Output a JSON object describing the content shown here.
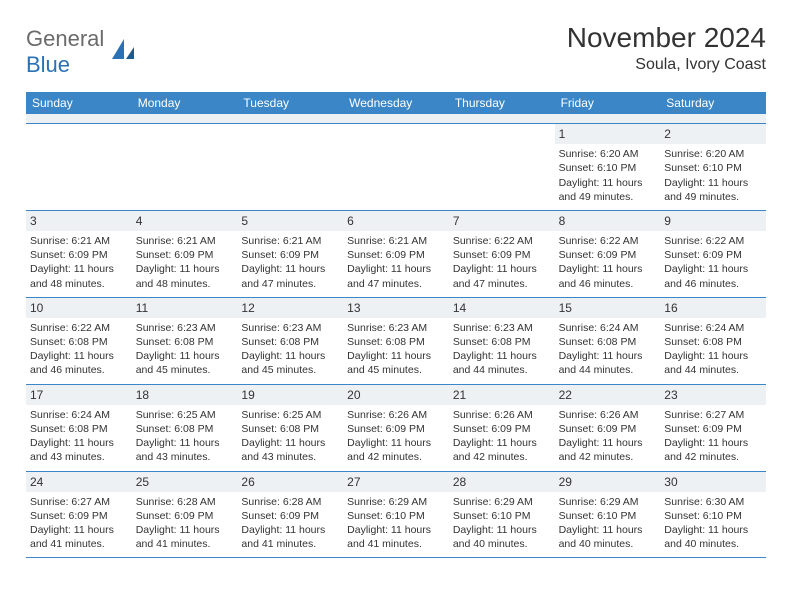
{
  "logo": {
    "general": "General",
    "blue": "Blue"
  },
  "title": "November 2024",
  "location": "Soula, Ivory Coast",
  "weekday_header_bg": "#3b86c6",
  "weekday_header_fg": "#ffffff",
  "daynum_bg": "#eef1f3",
  "row_border": "#3b86c6",
  "weekdays": [
    "Sunday",
    "Monday",
    "Tuesday",
    "Wednesday",
    "Thursday",
    "Friday",
    "Saturday"
  ],
  "weeks": [
    [
      {
        "empty": true
      },
      {
        "empty": true
      },
      {
        "empty": true
      },
      {
        "empty": true
      },
      {
        "empty": true
      },
      {
        "day": "1",
        "sunrise": "Sunrise: 6:20 AM",
        "sunset": "Sunset: 6:10 PM",
        "daylight": "Daylight: 11 hours and 49 minutes."
      },
      {
        "day": "2",
        "sunrise": "Sunrise: 6:20 AM",
        "sunset": "Sunset: 6:10 PM",
        "daylight": "Daylight: 11 hours and 49 minutes."
      }
    ],
    [
      {
        "day": "3",
        "sunrise": "Sunrise: 6:21 AM",
        "sunset": "Sunset: 6:09 PM",
        "daylight": "Daylight: 11 hours and 48 minutes."
      },
      {
        "day": "4",
        "sunrise": "Sunrise: 6:21 AM",
        "sunset": "Sunset: 6:09 PM",
        "daylight": "Daylight: 11 hours and 48 minutes."
      },
      {
        "day": "5",
        "sunrise": "Sunrise: 6:21 AM",
        "sunset": "Sunset: 6:09 PM",
        "daylight": "Daylight: 11 hours and 47 minutes."
      },
      {
        "day": "6",
        "sunrise": "Sunrise: 6:21 AM",
        "sunset": "Sunset: 6:09 PM",
        "daylight": "Daylight: 11 hours and 47 minutes."
      },
      {
        "day": "7",
        "sunrise": "Sunrise: 6:22 AM",
        "sunset": "Sunset: 6:09 PM",
        "daylight": "Daylight: 11 hours and 47 minutes."
      },
      {
        "day": "8",
        "sunrise": "Sunrise: 6:22 AM",
        "sunset": "Sunset: 6:09 PM",
        "daylight": "Daylight: 11 hours and 46 minutes."
      },
      {
        "day": "9",
        "sunrise": "Sunrise: 6:22 AM",
        "sunset": "Sunset: 6:09 PM",
        "daylight": "Daylight: 11 hours and 46 minutes."
      }
    ],
    [
      {
        "day": "10",
        "sunrise": "Sunrise: 6:22 AM",
        "sunset": "Sunset: 6:08 PM",
        "daylight": "Daylight: 11 hours and 46 minutes."
      },
      {
        "day": "11",
        "sunrise": "Sunrise: 6:23 AM",
        "sunset": "Sunset: 6:08 PM",
        "daylight": "Daylight: 11 hours and 45 minutes."
      },
      {
        "day": "12",
        "sunrise": "Sunrise: 6:23 AM",
        "sunset": "Sunset: 6:08 PM",
        "daylight": "Daylight: 11 hours and 45 minutes."
      },
      {
        "day": "13",
        "sunrise": "Sunrise: 6:23 AM",
        "sunset": "Sunset: 6:08 PM",
        "daylight": "Daylight: 11 hours and 45 minutes."
      },
      {
        "day": "14",
        "sunrise": "Sunrise: 6:23 AM",
        "sunset": "Sunset: 6:08 PM",
        "daylight": "Daylight: 11 hours and 44 minutes."
      },
      {
        "day": "15",
        "sunrise": "Sunrise: 6:24 AM",
        "sunset": "Sunset: 6:08 PM",
        "daylight": "Daylight: 11 hours and 44 minutes."
      },
      {
        "day": "16",
        "sunrise": "Sunrise: 6:24 AM",
        "sunset": "Sunset: 6:08 PM",
        "daylight": "Daylight: 11 hours and 44 minutes."
      }
    ],
    [
      {
        "day": "17",
        "sunrise": "Sunrise: 6:24 AM",
        "sunset": "Sunset: 6:08 PM",
        "daylight": "Daylight: 11 hours and 43 minutes."
      },
      {
        "day": "18",
        "sunrise": "Sunrise: 6:25 AM",
        "sunset": "Sunset: 6:08 PM",
        "daylight": "Daylight: 11 hours and 43 minutes."
      },
      {
        "day": "19",
        "sunrise": "Sunrise: 6:25 AM",
        "sunset": "Sunset: 6:08 PM",
        "daylight": "Daylight: 11 hours and 43 minutes."
      },
      {
        "day": "20",
        "sunrise": "Sunrise: 6:26 AM",
        "sunset": "Sunset: 6:09 PM",
        "daylight": "Daylight: 11 hours and 42 minutes."
      },
      {
        "day": "21",
        "sunrise": "Sunrise: 6:26 AM",
        "sunset": "Sunset: 6:09 PM",
        "daylight": "Daylight: 11 hours and 42 minutes."
      },
      {
        "day": "22",
        "sunrise": "Sunrise: 6:26 AM",
        "sunset": "Sunset: 6:09 PM",
        "daylight": "Daylight: 11 hours and 42 minutes."
      },
      {
        "day": "23",
        "sunrise": "Sunrise: 6:27 AM",
        "sunset": "Sunset: 6:09 PM",
        "daylight": "Daylight: 11 hours and 42 minutes."
      }
    ],
    [
      {
        "day": "24",
        "sunrise": "Sunrise: 6:27 AM",
        "sunset": "Sunset: 6:09 PM",
        "daylight": "Daylight: 11 hours and 41 minutes."
      },
      {
        "day": "25",
        "sunrise": "Sunrise: 6:28 AM",
        "sunset": "Sunset: 6:09 PM",
        "daylight": "Daylight: 11 hours and 41 minutes."
      },
      {
        "day": "26",
        "sunrise": "Sunrise: 6:28 AM",
        "sunset": "Sunset: 6:09 PM",
        "daylight": "Daylight: 11 hours and 41 minutes."
      },
      {
        "day": "27",
        "sunrise": "Sunrise: 6:29 AM",
        "sunset": "Sunset: 6:10 PM",
        "daylight": "Daylight: 11 hours and 41 minutes."
      },
      {
        "day": "28",
        "sunrise": "Sunrise: 6:29 AM",
        "sunset": "Sunset: 6:10 PM",
        "daylight": "Daylight: 11 hours and 40 minutes."
      },
      {
        "day": "29",
        "sunrise": "Sunrise: 6:29 AM",
        "sunset": "Sunset: 6:10 PM",
        "daylight": "Daylight: 11 hours and 40 minutes."
      },
      {
        "day": "30",
        "sunrise": "Sunrise: 6:30 AM",
        "sunset": "Sunset: 6:10 PM",
        "daylight": "Daylight: 11 hours and 40 minutes."
      }
    ]
  ]
}
